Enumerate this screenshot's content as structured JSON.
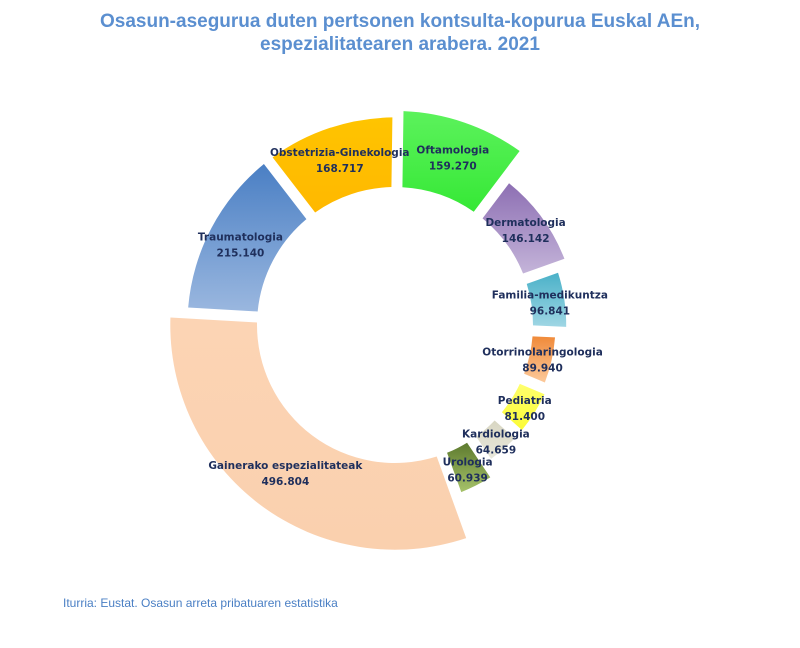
{
  "chart_data": {
    "type": "donut",
    "title_lines": [
      "Osasun-asegurua duten pertsonen kontsulta-kopurua Euskal AEn,",
      "espezialitatearen arabera. 2021"
    ],
    "categories": [
      "Oftamologia",
      "Dermatologia",
      "Familia-medikuntza",
      "Otorrinolaringologia",
      "Pediatria",
      "Kardiologia",
      "Urologia",
      "Gainerako espezialitateak",
      "Traumatologia",
      "Obstetrizia-Ginekologia"
    ],
    "values": [
      159270,
      146142,
      96841,
      89940,
      81400,
      64659,
      60939,
      496804,
      215140,
      168717
    ],
    "value_labels": [
      "159.270",
      "146.142",
      "96.841",
      "89.940",
      "81.400",
      "64.659",
      "60.939",
      "496.804",
      "215.140",
      "168.717"
    ],
    "outer_radius_scale": [
      1.0,
      0.85,
      0.8,
      0.75,
      0.77,
      0.77,
      0.84,
      1.05,
      0.97,
      0.97
    ],
    "colors": [
      [
        "#5cf25c",
        "#36e836"
      ],
      [
        "#8d6fb3",
        "#c4b4d9"
      ],
      [
        "#4ab1c8",
        "#9fd6e4"
      ],
      [
        "#f08a3a",
        "#fcc99a"
      ],
      [
        "#ffff6e",
        "#fbfb35"
      ],
      [
        "#d8d6c2",
        "#e9e8dc"
      ],
      [
        "#5d7a2e",
        "#a6c26a"
      ],
      [
        "#fcd4b4",
        "#fad0ae"
      ],
      [
        "#4a7fc4",
        "#9ab7df"
      ],
      [
        "#ffc400",
        "#ffb800"
      ]
    ],
    "source": "Iturria: Eustat. Osasun arreta pribatuaren estatistika"
  }
}
